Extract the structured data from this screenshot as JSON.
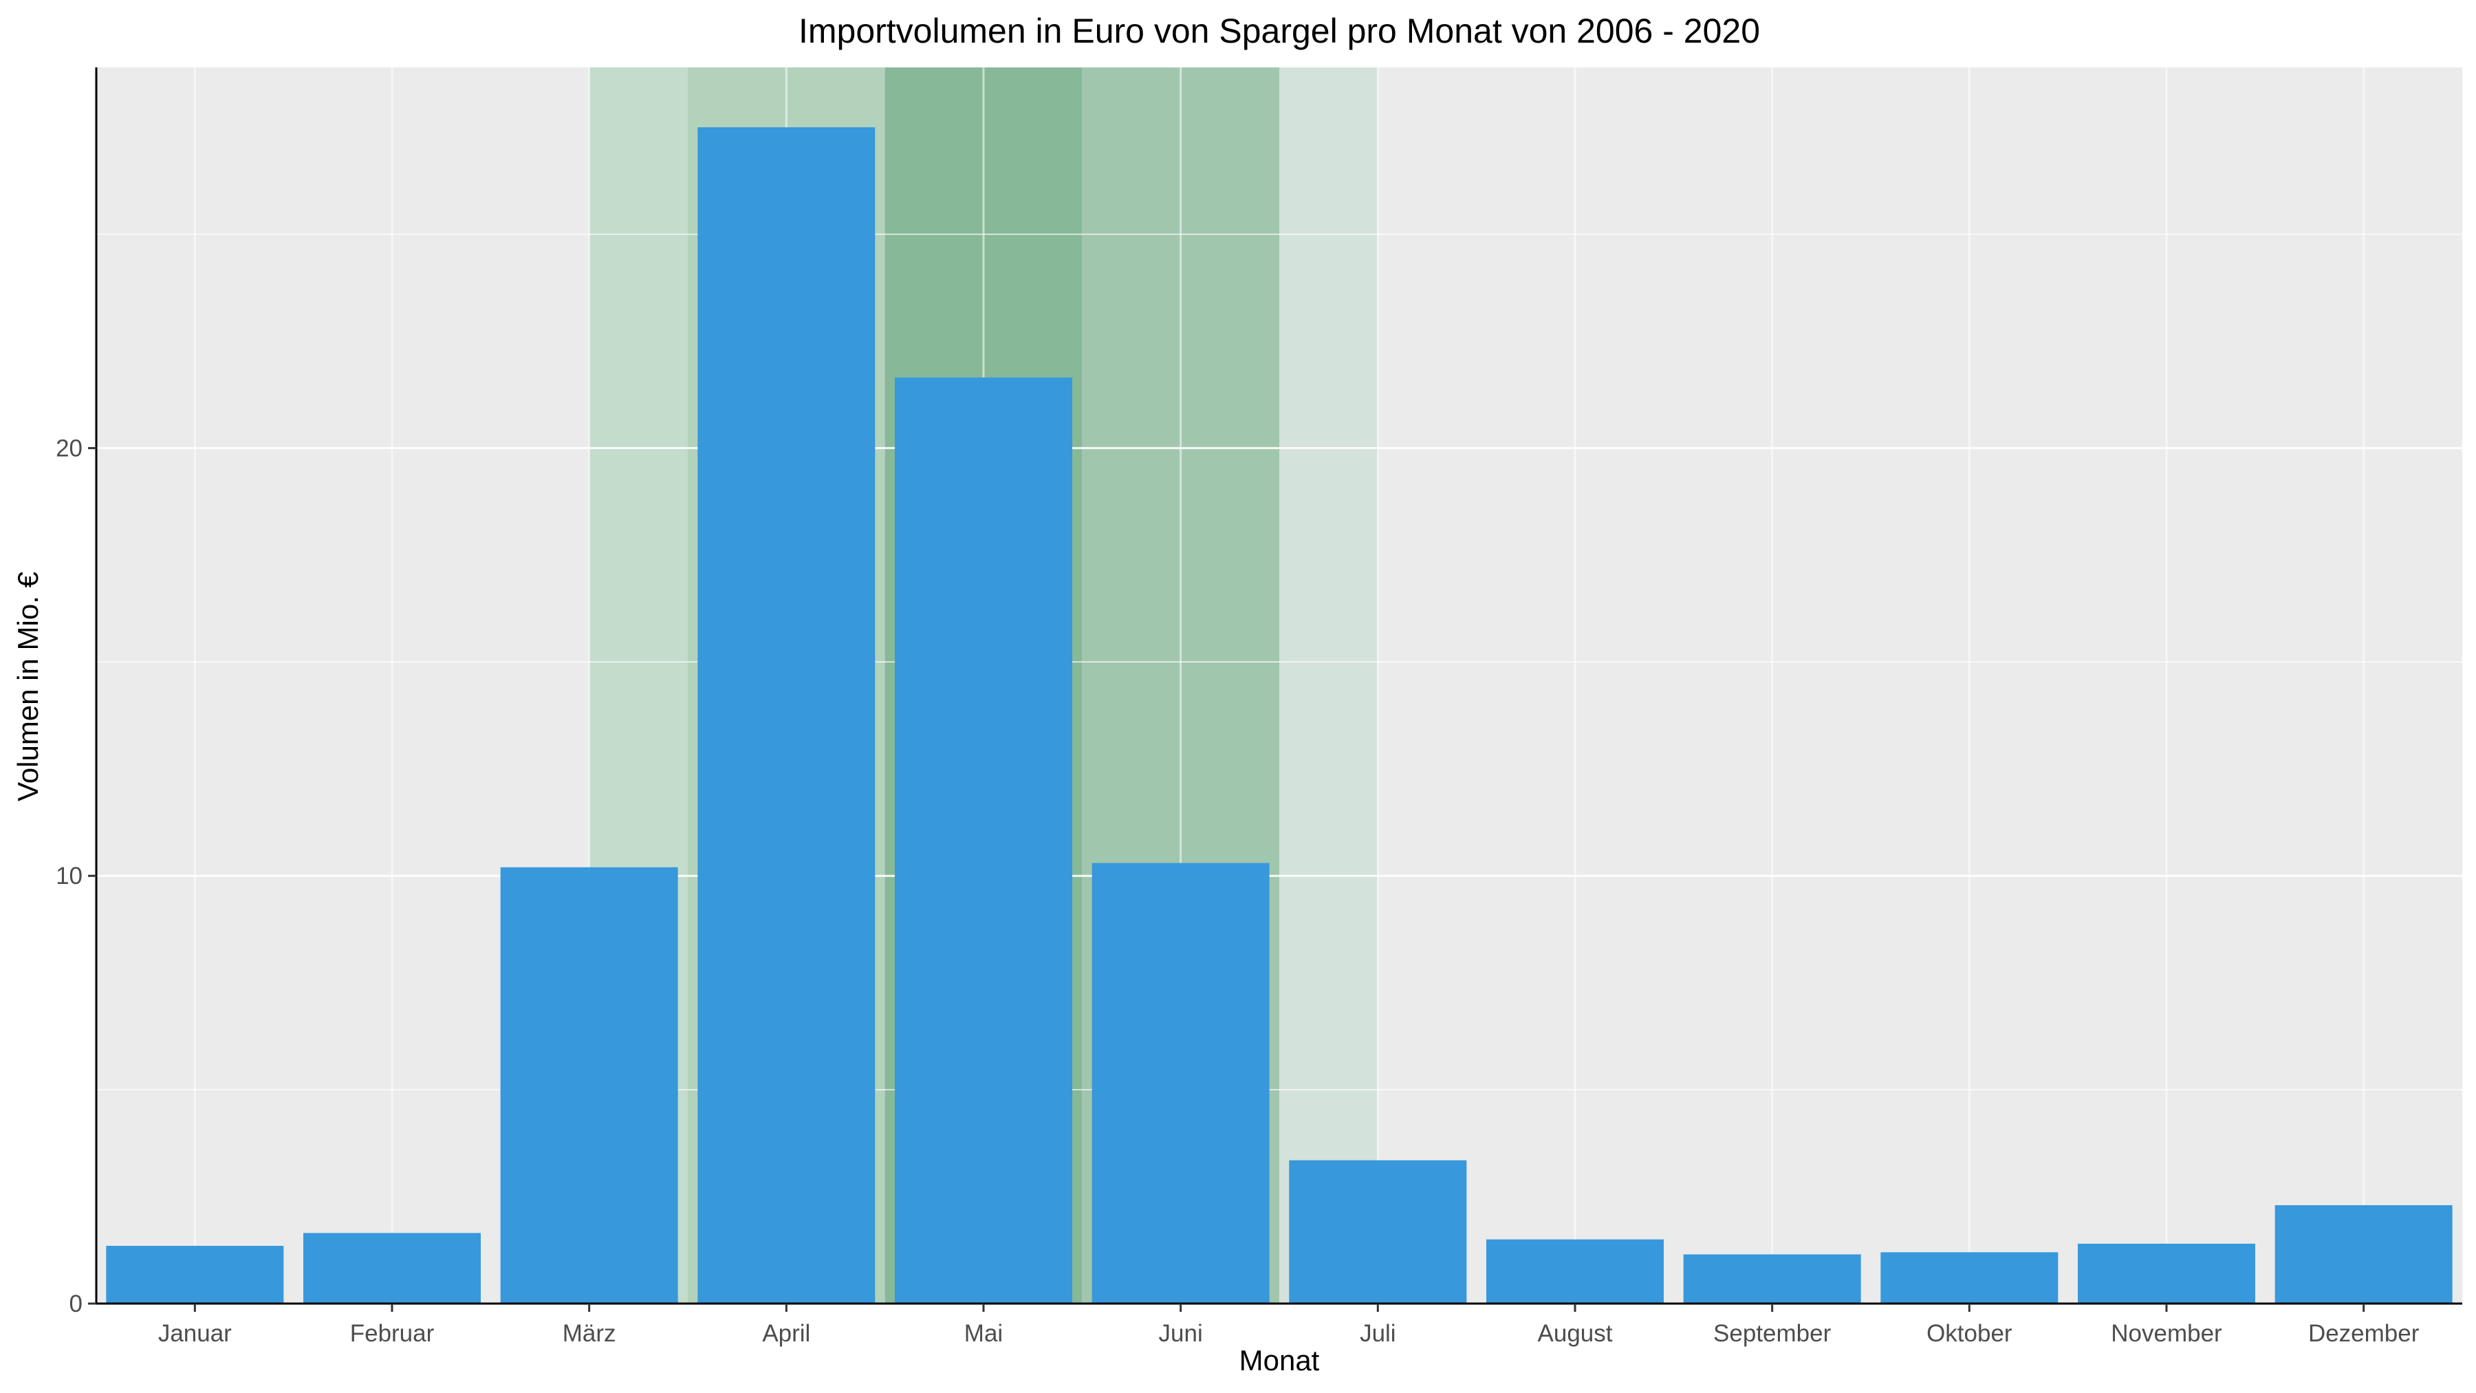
{
  "chart_data": {
    "type": "bar",
    "title": "Importvolumen in Euro von Spargel pro Monat von 2006 - 2020",
    "xlabel": "Monat",
    "ylabel": "Volumen in Mio. €",
    "categories": [
      "Januar",
      "Februar",
      "März",
      "April",
      "Mai",
      "Juni",
      "Juli",
      "August",
      "September",
      "Oktober",
      "November",
      "Dezember"
    ],
    "values": [
      1.35,
      1.65,
      10.2,
      27.5,
      21.65,
      10.3,
      3.35,
      1.5,
      1.15,
      1.2,
      1.4,
      2.3
    ],
    "ylim": [
      0,
      28.9
    ],
    "yticks": [
      "0",
      "10",
      "20"
    ],
    "ytick_values": [
      0,
      10,
      20
    ],
    "grid": true,
    "bar_color": "#3798DB",
    "panel_color": "#EBEBEB",
    "season_bands": [
      {
        "from": 2.5,
        "to": 3.0,
        "color": "#C3DCCB"
      },
      {
        "from": 3.0,
        "to": 4.0,
        "color": "#B3D2BC"
      },
      {
        "from": 4.0,
        "to": 5.0,
        "color": "#87B898"
      },
      {
        "from": 5.0,
        "to": 6.0,
        "color": "#A1C6AE"
      },
      {
        "from": 6.0,
        "to": 6.5,
        "color": "#D3E2DA"
      }
    ]
  }
}
